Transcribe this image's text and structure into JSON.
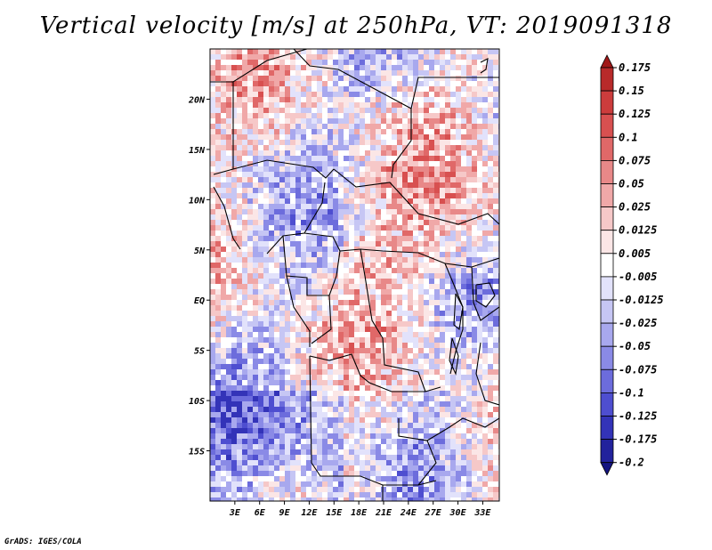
{
  "title": "Vertical velocity [m/s] at 250hPa, VT: 2019091318",
  "footer": "GrADS: IGES/COLA",
  "map": {
    "region": "Central Africa",
    "lon_range": [
      0,
      35
    ],
    "lat_range": [
      -20,
      25
    ],
    "x_ticks": [
      "3E",
      "6E",
      "9E",
      "12E",
      "15E",
      "18E",
      "21E",
      "24E",
      "27E",
      "30E",
      "33E"
    ],
    "x_tick_values": [
      3,
      6,
      9,
      12,
      15,
      18,
      21,
      24,
      27,
      30,
      33
    ],
    "y_ticks": [
      "20N",
      "15N",
      "10N",
      "5N",
      "EQ",
      "5S",
      "10S",
      "15S"
    ],
    "y_tick_values": [
      20,
      15,
      10,
      5,
      0,
      -5,
      -10,
      -15
    ]
  },
  "colorbar": {
    "labels": [
      "0.175",
      "0.15",
      "0.125",
      "0.1",
      "0.075",
      "0.05",
      "0.025",
      "0.0125",
      "0.005",
      "-0.005",
      "-0.0125",
      "-0.025",
      "-0.05",
      "-0.075",
      "-0.1",
      "-0.125",
      "-0.175",
      "-0.2"
    ],
    "colors": [
      "#a01818",
      "#b82a2a",
      "#cc3c3c",
      "#d85050",
      "#e06868",
      "#e88888",
      "#f0a8a8",
      "#f6c8c8",
      "#fbe6e6",
      "#ffffff",
      "#e2e2fb",
      "#c6c6f4",
      "#a8a8ee",
      "#8a8ae6",
      "#6c6cdc",
      "#4e4ed0",
      "#3333b8",
      "#22229c",
      "#141480"
    ]
  }
}
